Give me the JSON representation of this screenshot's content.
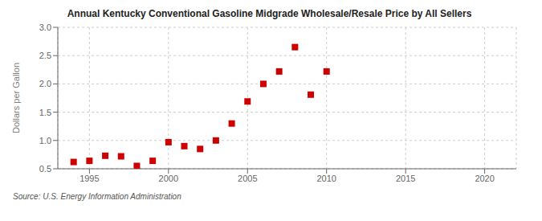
{
  "chart_data": {
    "type": "scatter",
    "title": "Annual Kentucky Conventional Gasoline Midgrade Wholesale/Resale Price by All Sellers",
    "y_label": "Dollars per Gallon",
    "annotations": [
      "Source: U.S. Energy Information Administration"
    ],
    "x": [
      1994,
      1995,
      1996,
      1997,
      1998,
      1999,
      2000,
      2001,
      2002,
      2003,
      2004,
      2005,
      2006,
      2007,
      2008,
      2009,
      2010
    ],
    "values": [
      0.62,
      0.64,
      0.73,
      0.72,
      0.55,
      0.64,
      0.97,
      0.9,
      0.85,
      1.0,
      1.3,
      1.69,
      2.0,
      2.22,
      2.65,
      1.81,
      2.22
    ],
    "color": "#cc0000",
    "marker": "square",
    "xlim": [
      1993,
      2022
    ],
    "ylim": [
      0.5,
      3.0
    ],
    "xticks": [
      1995,
      2000,
      2005,
      2010,
      2015,
      2020
    ],
    "yticks": [
      0.5,
      {
        "value": 1.0,
        "label": "1.0"
      },
      1.5,
      {
        "value": 2.0,
        "label": "2.0"
      },
      2.5,
      {
        "value": 3.0,
        "label": "3.0"
      }
    ],
    "grid": true
  }
}
